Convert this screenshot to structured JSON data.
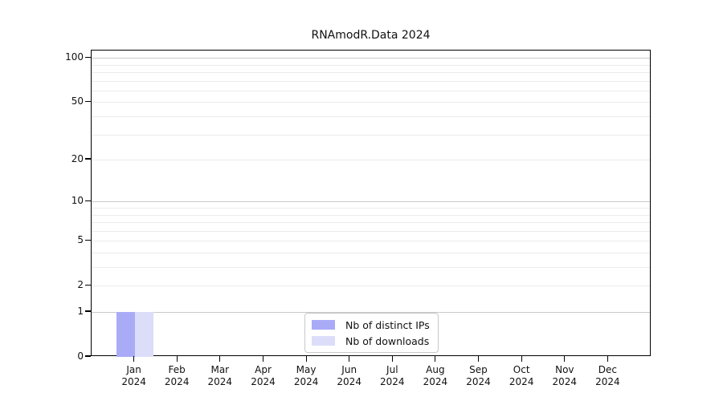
{
  "chart_data": {
    "type": "bar",
    "title": "RNAmodR.Data 2024",
    "months": [
      "Jan",
      "Feb",
      "Mar",
      "Apr",
      "May",
      "Jun",
      "Jul",
      "Aug",
      "Sep",
      "Oct",
      "Nov",
      "Dec"
    ],
    "year_label": "2024",
    "y_ticks": [
      100,
      50,
      20,
      10,
      5,
      2,
      1,
      0
    ],
    "y_scale": "log10(value+1)",
    "y_max": 112,
    "grid": "both",
    "legend_position": "bottom-center",
    "series": [
      {
        "name": "Nb of distinct IPs",
        "color": "#a9abf6",
        "values": [
          1,
          0,
          0,
          0,
          0,
          0,
          0,
          0,
          0,
          0,
          0,
          0
        ]
      },
      {
        "name": "Nb of downloads",
        "color": "#dcddf9",
        "values": [
          1,
          0,
          0,
          0,
          0,
          0,
          0,
          0,
          0,
          0,
          0,
          0
        ]
      }
    ],
    "colors": {
      "major_grid": "#c9c9c9",
      "minor_grid": "#ebebeb",
      "spine": "#000000",
      "background": "#ffffff"
    }
  }
}
